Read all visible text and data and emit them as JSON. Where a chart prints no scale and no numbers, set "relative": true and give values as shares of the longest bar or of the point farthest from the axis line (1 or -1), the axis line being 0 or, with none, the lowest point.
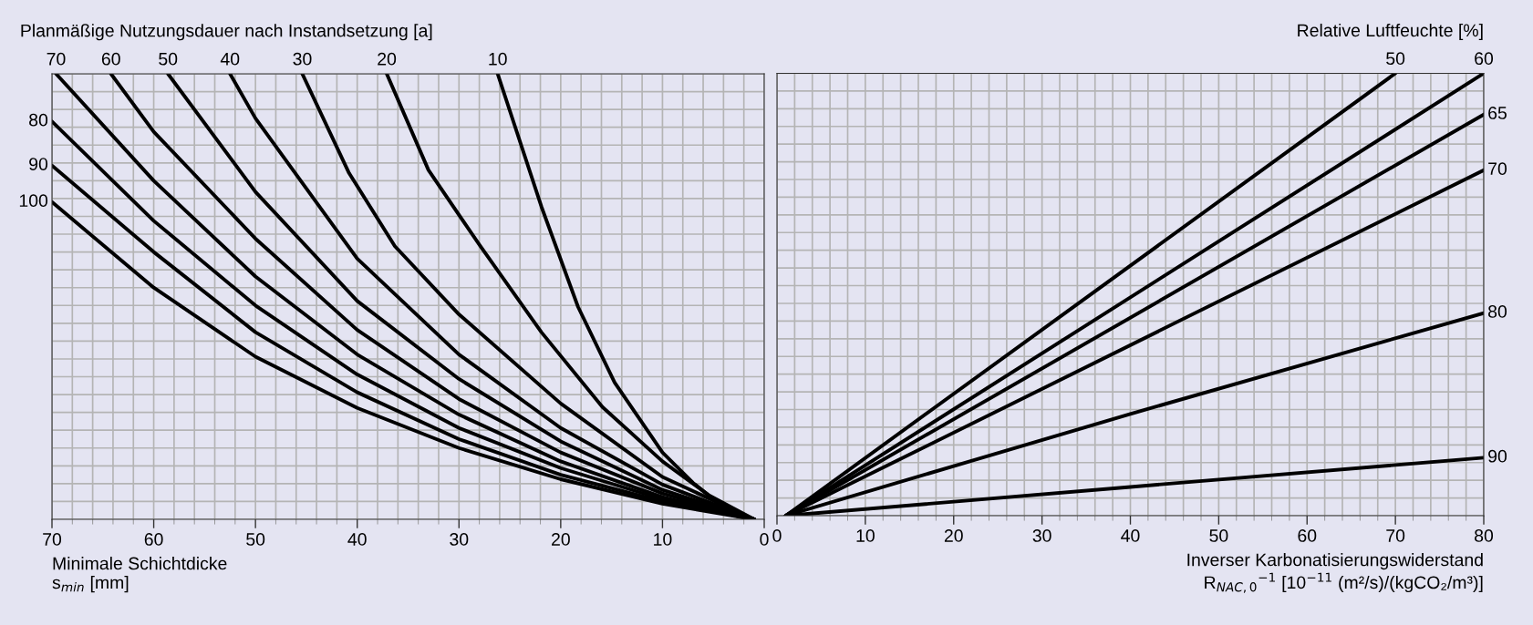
{
  "chart_data": [
    {
      "type": "line",
      "legend_title": "Planmäßige Nutzungsdauer nach Instandsetzung [a]",
      "xlabel": "Minimale Schichtdicke\ns$_{min}$ [mm]",
      "xlim": [
        70,
        0
      ],
      "xticks": [
        70,
        60,
        50,
        40,
        30,
        20,
        10,
        0
      ],
      "relative": true,
      "tick_labels": "x",
      "grid": true,
      "legend": false,
      "series": [
        {
          "name": "10",
          "color": "#000000",
          "x": [
            1,
            4,
            7,
            10,
            14.7,
            18.3,
            21.9,
            26.2
          ],
          "values": [
            0,
            0.027,
            0.082,
            0.15,
            0.307,
            0.477,
            0.702,
            1
          ]
        },
        {
          "name": "20",
          "color": "#000000",
          "x": [
            1,
            5.5,
            10,
            15.9,
            21.9,
            27.9,
            33,
            37.1
          ],
          "values": [
            0,
            0.055,
            0.13,
            0.252,
            0.42,
            0.613,
            0.784,
            1
          ]
        },
        {
          "name": "30",
          "color": "#000000",
          "x": [
            1,
            10,
            20,
            30,
            36.3,
            40.8,
            45.4
          ],
          "values": [
            0,
            0.095,
            0.26,
            0.46,
            0.613,
            0.777,
            1
          ]
        },
        {
          "name": "40",
          "color": "#000000",
          "x": [
            1,
            10,
            20,
            30,
            40,
            50,
            52.5
          ],
          "values": [
            0,
            0.078,
            0.205,
            0.37,
            0.585,
            0.9,
            1
          ]
        },
        {
          "name": "50",
          "color": "#000000",
          "x": [
            1,
            10,
            20,
            30,
            40,
            50,
            58.6
          ],
          "values": [
            0,
            0.066,
            0.175,
            0.315,
            0.49,
            0.735,
            1
          ]
        },
        {
          "name": "60",
          "color": "#000000",
          "x": [
            1,
            10,
            20,
            30,
            40,
            50,
            60,
            64.2
          ],
          "values": [
            0,
            0.058,
            0.15,
            0.27,
            0.425,
            0.63,
            0.87,
            1
          ]
        },
        {
          "name": "70",
          "color": "#000000",
          "x": [
            1,
            10,
            20,
            30,
            40,
            50,
            60,
            69.6
          ],
          "values": [
            0,
            0.05,
            0.13,
            0.235,
            0.37,
            0.545,
            0.76,
            1
          ]
        },
        {
          "name": "80",
          "color": "#000000",
          "x": [
            1,
            10,
            20,
            30,
            40,
            50,
            60,
            70
          ],
          "values": [
            0,
            0.045,
            0.115,
            0.205,
            0.325,
            0.48,
            0.67,
            0.893
          ]
        },
        {
          "name": "90",
          "color": "#000000",
          "x": [
            1,
            10,
            20,
            30,
            40,
            50,
            60,
            70
          ],
          "values": [
            0,
            0.04,
            0.1,
            0.18,
            0.285,
            0.42,
            0.6,
            0.794
          ]
        },
        {
          "name": "100",
          "color": "#000000",
          "x": [
            1,
            10,
            20,
            30,
            40,
            50,
            60,
            70
          ],
          "values": [
            0,
            0.035,
            0.09,
            0.16,
            0.25,
            0.365,
            0.52,
            0.712
          ]
        }
      ]
    },
    {
      "type": "line",
      "legend_title": "Relative Luftfeuchte [%]",
      "xlabel": "Inverser Karbonatisierungswiderstand\nR$_{NAC,0}$$^{−1}$ [10$^{−11}$ (m²/s)/(kgCO₂/m³)]",
      "xlim": [
        0,
        80
      ],
      "xticks": [
        0,
        10,
        20,
        30,
        40,
        50,
        60,
        70,
        80
      ],
      "relative": true,
      "tick_labels": "x",
      "grid": true,
      "legend": false,
      "series": [
        {
          "name": "50",
          "color": "#000000",
          "x": [
            1,
            70
          ],
          "values": [
            0,
            1
          ]
        },
        {
          "name": "60",
          "color": "#000000",
          "x": [
            1,
            80
          ],
          "values": [
            0,
            1
          ]
        },
        {
          "name": "65",
          "color": "#000000",
          "x": [
            1,
            80
          ],
          "values": [
            0,
            0.907
          ]
        },
        {
          "name": "70",
          "color": "#000000",
          "x": [
            1,
            80
          ],
          "values": [
            0,
            0.781
          ]
        },
        {
          "name": "80",
          "color": "#000000",
          "x": [
            1,
            40,
            80
          ],
          "values": [
            0,
            0.23,
            0.458
          ]
        },
        {
          "name": "90",
          "color": "#000000",
          "x": [
            1,
            40,
            80
          ],
          "values": [
            0,
            0.065,
            0.131
          ]
        }
      ]
    }
  ]
}
